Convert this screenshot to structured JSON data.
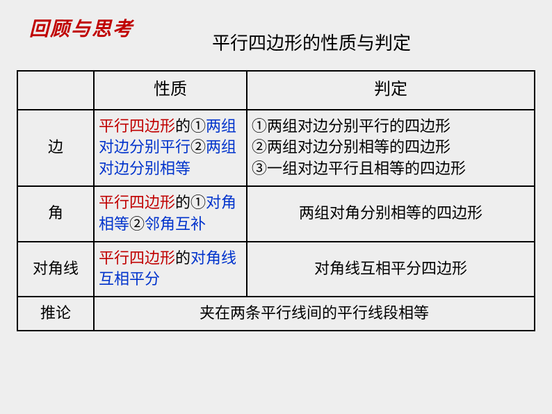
{
  "header": {
    "section_title": "回顾与思考",
    "main_title": "平行四边形的性质与判定"
  },
  "table": {
    "header": {
      "col1": "",
      "col2": "性质",
      "col3": "判定"
    },
    "rows": {
      "edge": {
        "label": "边",
        "prop_red1": "平行四边形",
        "prop_black1": "的①",
        "prop_blue1": "两组对边分别平行",
        "prop_black2": "②",
        "prop_blue2": "两组对边分别相等",
        "judge_line1": "①两组对边分别平行的四边形",
        "judge_line2": "②两组对边分别相等的四边形",
        "judge_line3": "③一组对边平行且相等的四边形"
      },
      "angle": {
        "label": "角",
        "prop_red1": "平行四边形",
        "prop_black1": "的①",
        "prop_blue1": "对角相等",
        "prop_black2": "②",
        "prop_blue2": "邻角互补",
        "judge": "两组对角分别相等的四边形"
      },
      "diagonal": {
        "label": "对角线",
        "prop_red1": "平行四边形",
        "prop_black1": "的",
        "prop_blue1": "对角线互相平分",
        "judge": "对角线互相平分四边形"
      },
      "corollary": {
        "label": "推论",
        "merged": "夹在两条平行线间的平行线段相等"
      }
    }
  },
  "colors": {
    "red": "#c00000",
    "blue": "#0033cc",
    "black": "#000000",
    "bg": "#eeeeee",
    "border": "#000000"
  },
  "font_sizes": {
    "section_title": 28,
    "main_title": 26,
    "hdr": 24,
    "cell": 22
  }
}
